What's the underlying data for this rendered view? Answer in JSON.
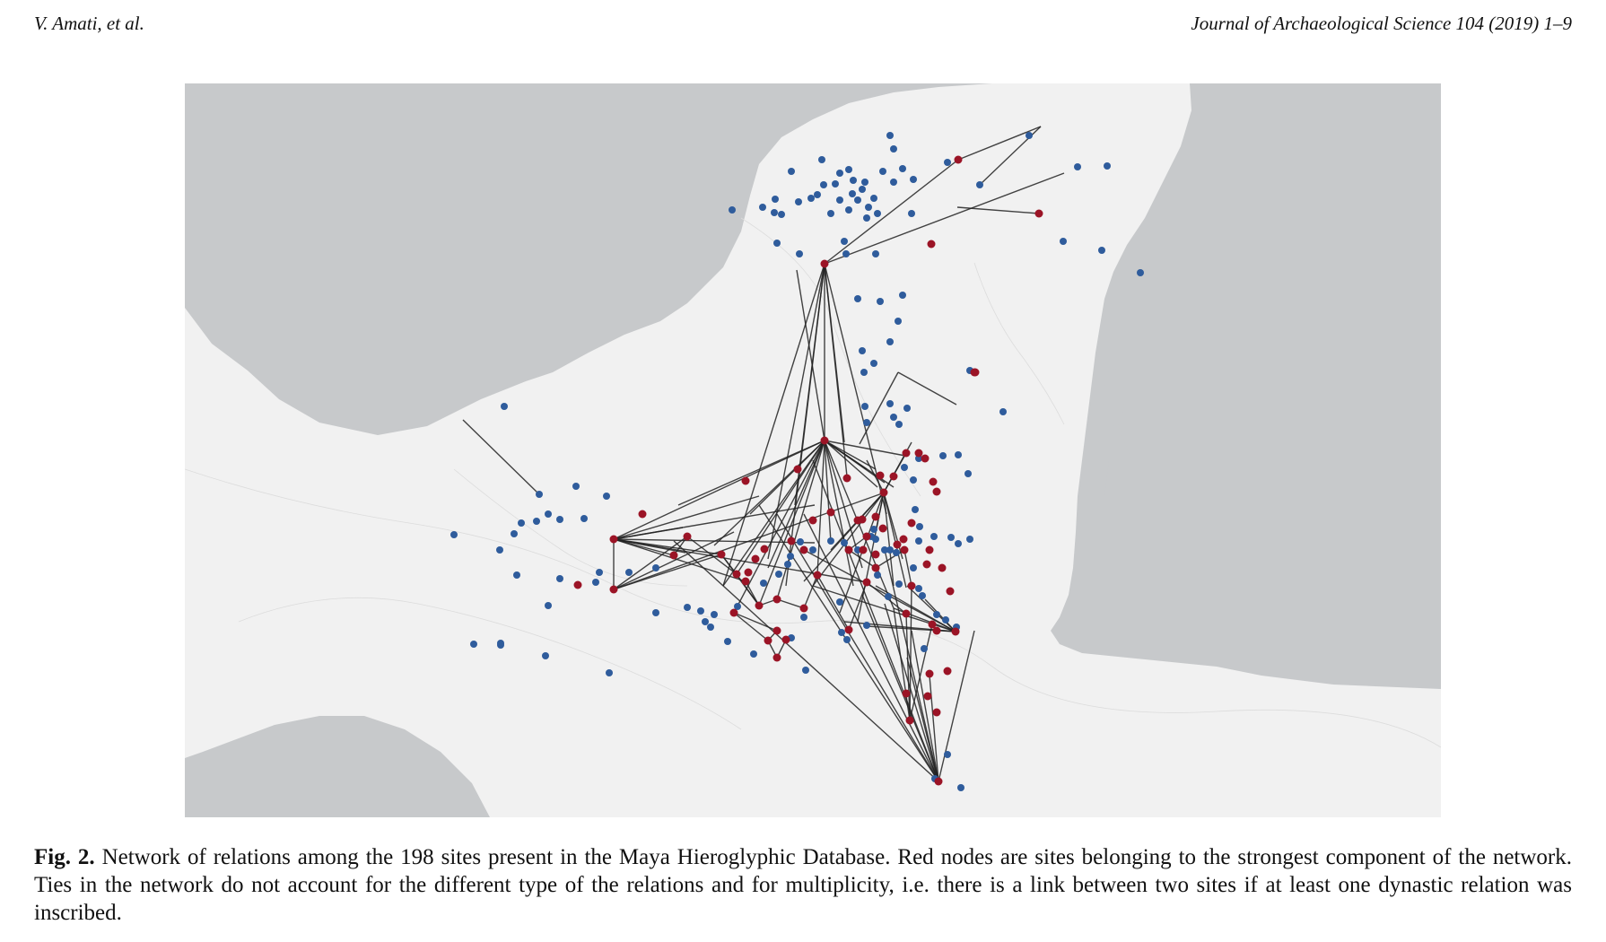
{
  "header": {
    "authors": "V. Amati, et al.",
    "journal": "Journal of Archaeological Science 104 (2019) 1–9"
  },
  "figure": {
    "label": "Fig. 2.",
    "caption": " Network of relations among the 198 sites present in the Maya Hieroglyphic Database. Red nodes are sites belonging to the strongest component of the network. Ties in the network do not account for the different type of the relations and for multiplicity, i.e. there is a link between two sites if at least one dynastic relation was inscribed.",
    "colors": {
      "sea": "#c7c9cb",
      "land": "#f1f1f1",
      "strong_component_node": "#9b1426",
      "other_node": "#2f5c9c",
      "edge": "#222222"
    },
    "legend_semantics": {
      "red": "strongest component",
      "blue": "other sites"
    }
  }
}
